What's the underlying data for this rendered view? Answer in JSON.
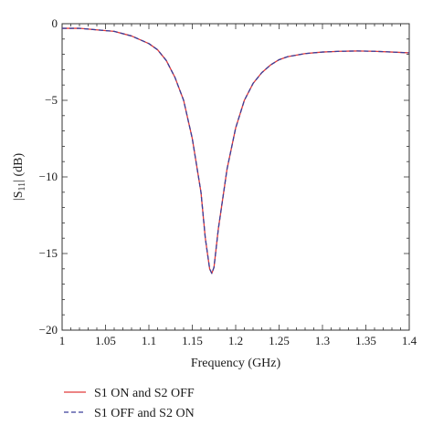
{
  "chart_data": {
    "type": "line",
    "xlabel": "Frequency (GHz)",
    "ylabel_main": "|S",
    "ylabel_sub": "11",
    "ylabel_tail": "| (dB)",
    "xlim": [
      1.0,
      1.4
    ],
    "ylim": [
      -20,
      0
    ],
    "x_ticks": [
      1.0,
      1.05,
      1.1,
      1.15,
      1.2,
      1.25,
      1.3,
      1.35,
      1.4
    ],
    "x_tick_labels": [
      "1",
      "1.05",
      "1.1",
      "1.15",
      "1.2",
      "1.25",
      "1.3",
      "1.35",
      "1.4"
    ],
    "y_ticks": [
      0,
      -5,
      -10,
      -15,
      -20
    ],
    "y_tick_labels": [
      "0",
      "−5",
      "−10",
      "−15",
      "−20"
    ],
    "grid": false,
    "legend_position": "below-left",
    "x": [
      1.0,
      1.02,
      1.04,
      1.06,
      1.08,
      1.1,
      1.11,
      1.12,
      1.13,
      1.14,
      1.15,
      1.16,
      1.165,
      1.17,
      1.1725,
      1.175,
      1.18,
      1.19,
      1.2,
      1.21,
      1.22,
      1.23,
      1.24,
      1.25,
      1.26,
      1.28,
      1.3,
      1.32,
      1.34,
      1.36,
      1.38,
      1.4
    ],
    "series": [
      {
        "name": "S1 ON and S2 OFF",
        "color": "#e23a3a",
        "dash": "solid",
        "values": [
          -0.3,
          -0.3,
          -0.4,
          -0.5,
          -0.8,
          -1.3,
          -1.7,
          -2.4,
          -3.5,
          -5.0,
          -7.5,
          -11.0,
          -14.0,
          -16.0,
          -16.3,
          -15.9,
          -13.4,
          -9.5,
          -6.8,
          -5.0,
          -3.9,
          -3.2,
          -2.7,
          -2.35,
          -2.15,
          -1.95,
          -1.85,
          -1.8,
          -1.78,
          -1.8,
          -1.85,
          -1.9
        ]
      },
      {
        "name": "S1 OFF and S2 ON",
        "color": "#3a3f9a",
        "dash": "dashed",
        "values": [
          -0.3,
          -0.3,
          -0.4,
          -0.5,
          -0.8,
          -1.3,
          -1.7,
          -2.4,
          -3.5,
          -5.0,
          -7.5,
          -11.0,
          -14.0,
          -16.0,
          -16.3,
          -15.9,
          -13.4,
          -9.5,
          -6.8,
          -5.0,
          -3.9,
          -3.2,
          -2.7,
          -2.35,
          -2.15,
          -1.95,
          -1.85,
          -1.8,
          -1.78,
          -1.8,
          -1.85,
          -1.9
        ]
      }
    ]
  }
}
